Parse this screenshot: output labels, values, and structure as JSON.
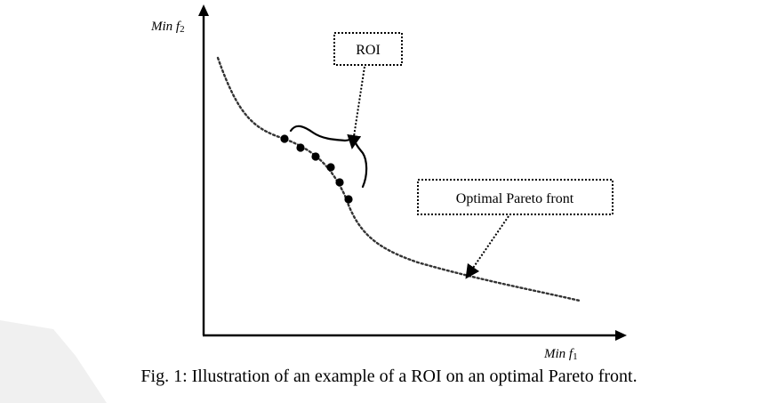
{
  "axes": {
    "y_label_main": "Min f",
    "y_label_sub": "2",
    "x_label_main": "Min f",
    "x_label_sub": "1"
  },
  "annotations": {
    "roi_label": "ROI",
    "pareto_label": "Optimal Pareto front"
  },
  "caption": "Fig. 1: Illustration of an example of a ROI on an optimal Pareto front.",
  "roi_points_count": 6,
  "colors": {
    "ink": "#000000",
    "curve": "#333333",
    "watermark": "#f0f0f0"
  }
}
